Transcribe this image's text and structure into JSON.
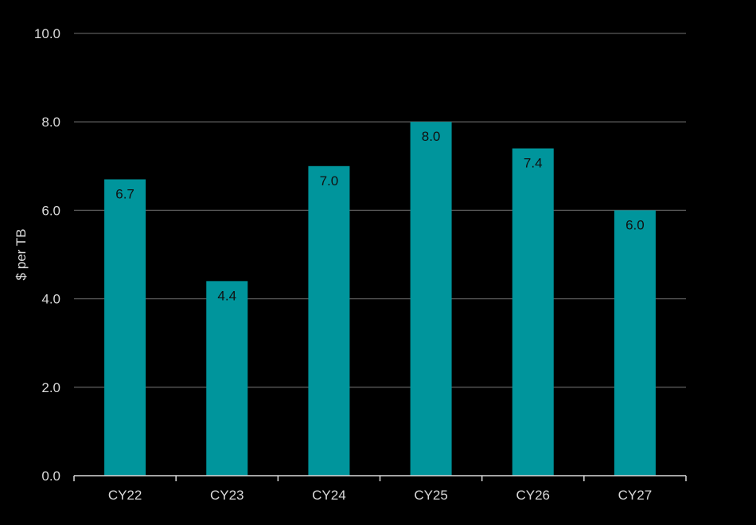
{
  "chart_data": {
    "type": "bar",
    "categories": [
      "CY22",
      "CY23",
      "CY24",
      "CY25",
      "CY26",
      "CY27"
    ],
    "values": [
      6.7,
      4.4,
      7.0,
      8.0,
      7.4,
      6.0
    ],
    "data_labels": [
      "6.7",
      "4.4",
      "7.0",
      "8.0",
      "7.4",
      "6.0"
    ],
    "title": "",
    "xlabel": "",
    "ylabel": "$ per TB",
    "ylim": [
      0,
      10
    ],
    "yticks": [
      0,
      2,
      4,
      6,
      8,
      10
    ],
    "ytick_labels": [
      "0.0",
      "2.0",
      "4.0",
      "6.0",
      "8.0",
      "10.0"
    ],
    "grid": true,
    "legend": "none",
    "colors": {
      "background": "#000000",
      "bar": "#00959c",
      "gridline": "#595959",
      "axis": "#d9d9d9",
      "label_text": "#d9d9d9",
      "data_label_text": "#111111"
    }
  }
}
